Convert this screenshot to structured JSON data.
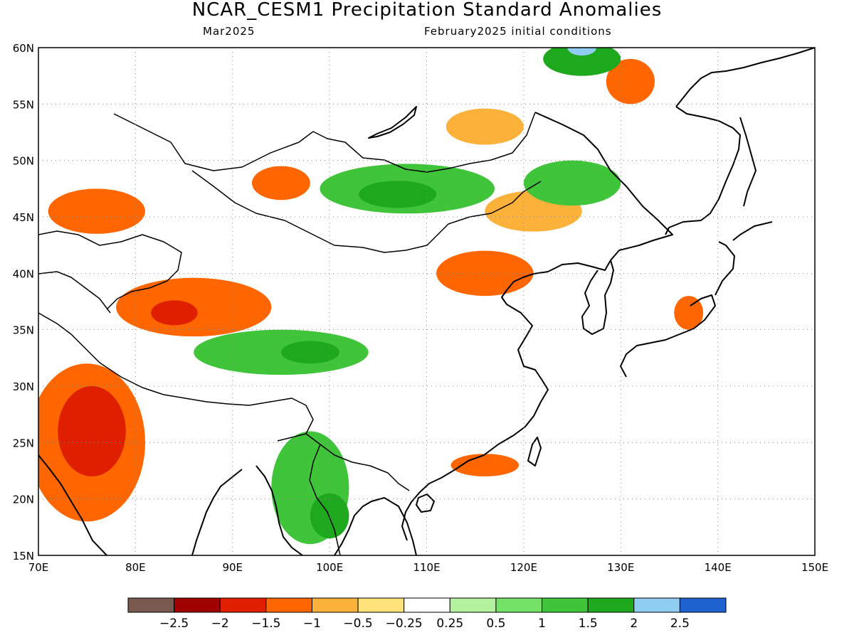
{
  "header": {
    "title": "NCAR_CESM1 Precipitation Standard Anomalies",
    "target_month": "Mar2025",
    "init": "February2025 initial conditions"
  },
  "map": {
    "lon_range": [
      70,
      150
    ],
    "lat_range": [
      15,
      60
    ],
    "lon_ticks": [
      "70E",
      "80E",
      "90E",
      "100E",
      "110E",
      "120E",
      "130E",
      "140E",
      "150E"
    ],
    "lat_ticks": [
      "60N",
      "55N",
      "50N",
      "45N",
      "40N",
      "35N",
      "30N",
      "25N",
      "20N",
      "15N"
    ],
    "grid": "dotted"
  },
  "colorbar": {
    "colors": [
      "#7a5a4e",
      "#a00000",
      "#e01e00",
      "#ff6600",
      "#fbb13a",
      "#ffe27a",
      "#ffffff",
      "#b5f2a0",
      "#73e266",
      "#3fc43a",
      "#1ea81e",
      "#8fcdf3",
      "#1e62d0"
    ],
    "labels": [
      "−2.5",
      "−2",
      "−1.5",
      "−1",
      "−0.5",
      "−0.25",
      "0.25",
      "0.5",
      "1",
      "1.5",
      "2",
      "2.5"
    ]
  },
  "anomaly_regions": [
    {
      "name": "india-west",
      "level": -1,
      "lon": 75,
      "lat": 25,
      "rx": 6,
      "ry": 7
    },
    {
      "name": "india-west-core",
      "level": -1.5,
      "lon": 75.5,
      "lat": 26,
      "rx": 3.5,
      "ry": 4
    },
    {
      "name": "central-asia-north",
      "level": -1,
      "lon": 76,
      "lat": 45.5,
      "rx": 5,
      "ry": 2
    },
    {
      "name": "tibet-west",
      "level": -1,
      "lon": 86,
      "lat": 37,
      "rx": 8,
      "ry": 2.6
    },
    {
      "name": "tibet-west-core",
      "level": -1.5,
      "lon": 84,
      "lat": 36.5,
      "rx": 2.4,
      "ry": 1.1
    },
    {
      "name": "kazakh-east",
      "level": -1,
      "lon": 95,
      "lat": 48,
      "rx": 3,
      "ry": 1.5
    },
    {
      "name": "north-china",
      "level": -1,
      "lon": 116,
      "lat": 40,
      "rx": 5,
      "ry": 2
    },
    {
      "name": "mongolia-east",
      "level": -0.5,
      "lon": 121,
      "lat": 45.5,
      "rx": 5,
      "ry": 1.8
    },
    {
      "name": "siberia-east",
      "level": -1,
      "lon": 131,
      "lat": 57,
      "rx": 2.5,
      "ry": 2
    },
    {
      "name": "baikal-south",
      "level": -0.5,
      "lon": 116,
      "lat": 53,
      "rx": 4,
      "ry": 1.6
    },
    {
      "name": "south-china-coast",
      "level": -1,
      "lon": 116,
      "lat": 23,
      "rx": 3.5,
      "ry": 1
    },
    {
      "name": "japan-honshu",
      "level": -1,
      "lon": 137,
      "lat": 36.5,
      "rx": 1.5,
      "ry": 1.5
    },
    {
      "name": "mongolia-central",
      "level": 1,
      "lon": 108,
      "lat": 47.5,
      "rx": 9,
      "ry": 2.2
    },
    {
      "name": "mongolia-central-core",
      "level": 1.5,
      "lon": 107,
      "lat": 47,
      "rx": 4,
      "ry": 1.2
    },
    {
      "name": "tibet-central",
      "level": 1,
      "lon": 95,
      "lat": 33,
      "rx": 9,
      "ry": 2
    },
    {
      "name": "tibet-central-core",
      "level": 1.5,
      "lon": 98,
      "lat": 33,
      "rx": 3,
      "ry": 1
    },
    {
      "name": "myanmar-thailand",
      "level": 1,
      "lon": 98,
      "lat": 21,
      "rx": 4,
      "ry": 5
    },
    {
      "name": "thailand-core",
      "level": 1.5,
      "lon": 100,
      "lat": 18.5,
      "rx": 2,
      "ry": 2
    },
    {
      "name": "manchuria",
      "level": 1,
      "lon": 125,
      "lat": 48,
      "rx": 5,
      "ry": 2
    },
    {
      "name": "siberia-north",
      "level": 1.5,
      "lon": 126,
      "lat": 59,
      "rx": 4,
      "ry": 1.5
    },
    {
      "name": "siberia-north-peak",
      "level": 2,
      "lon": 126,
      "lat": 60,
      "rx": 1.5,
      "ry": 0.7
    }
  ]
}
